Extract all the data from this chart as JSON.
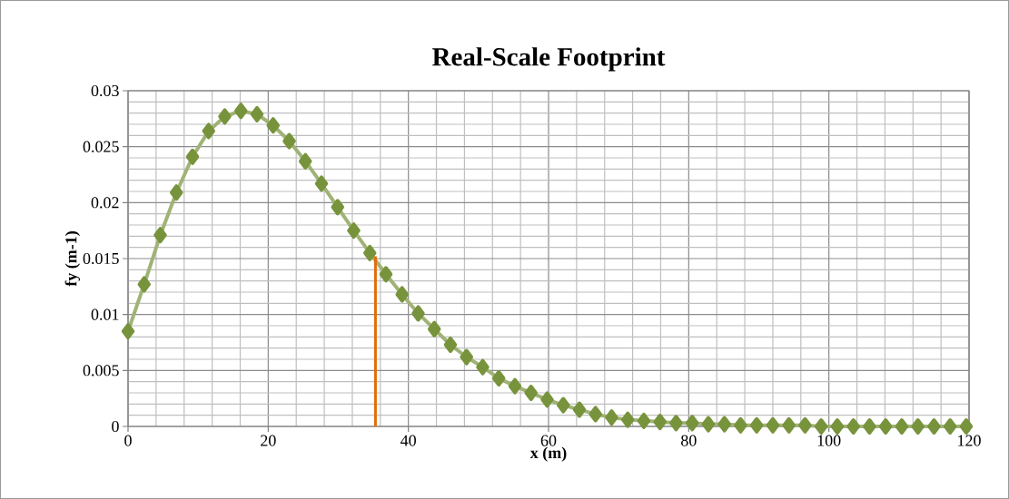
{
  "chart_data": {
    "type": "line",
    "title": "Real-Scale Footprint",
    "xlabel": "x (m)",
    "ylabel": "fy (m-1)",
    "xlim": [
      0,
      120
    ],
    "xticks": [
      0,
      20,
      40,
      60,
      80,
      100,
      120
    ],
    "ylim": [
      0,
      0.03
    ],
    "yticks": [
      0,
      0.005,
      0.01,
      0.015,
      0.02,
      0.025,
      0.03
    ],
    "grid": true,
    "marker": "diamond",
    "series": [
      {
        "color": "#77933c",
        "x": [
          0,
          2.3,
          4.6,
          6.9,
          9.2,
          11.5,
          13.8,
          16.1,
          18.4,
          20.7,
          23,
          25.3,
          27.6,
          29.9,
          32.2,
          34.5,
          36.8,
          39.1,
          41.4,
          43.7,
          46,
          48.3,
          50.6,
          52.9,
          55.2,
          57.5,
          59.8,
          62.1,
          64.4,
          66.7,
          69,
          71.3,
          73.6,
          75.9,
          78.2,
          80.5,
          82.8,
          85.1,
          87.4,
          89.7,
          92,
          94.3,
          96.6,
          98.9,
          101.2,
          103.5,
          105.8,
          108.1,
          110.4,
          112.7,
          115,
          117.3,
          119.6
        ],
        "values": [
          0.0085,
          0.0127,
          0.0171,
          0.0209,
          0.0241,
          0.0264,
          0.0277,
          0.0282,
          0.0279,
          0.0269,
          0.0255,
          0.0237,
          0.0217,
          0.0196,
          0.0175,
          0.0155,
          0.0136,
          0.0118,
          0.0101,
          0.0087,
          0.0073,
          0.0062,
          0.0053,
          0.0043,
          0.0036,
          0.003,
          0.0024,
          0.0019,
          0.0015,
          0.0011,
          0.0008,
          0.0006,
          0.0005,
          0.0004,
          0.0003,
          0.0003,
          0.0002,
          0.0002,
          0.0001,
          0.0001,
          0.0001,
          0.0001,
          0.0001,
          0,
          0,
          0,
          0,
          0,
          0,
          0,
          0,
          0,
          0
        ]
      },
      {
        "type": "line",
        "marker": "none",
        "color": "#e36c0a",
        "x": [
          35.3,
          35.3
        ],
        "values": [
          0,
          0.0152
        ]
      }
    ]
  }
}
